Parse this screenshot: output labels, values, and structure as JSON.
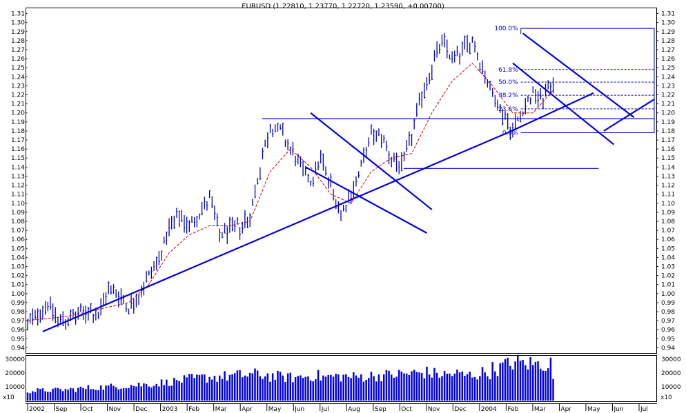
{
  "chart_data": {
    "type": "line",
    "title": "EURUSD (1.22810, 1.23770, 1.22720, 1.23590, +0.00700)",
    "price_axis": {
      "ylim": [
        0.935,
        1.315
      ],
      "ticks": [
        "0.94",
        "0.95",
        "0.96",
        "0.97",
        "0.98",
        "0.99",
        "1.00",
        "1.01",
        "1.02",
        "1.03",
        "1.04",
        "1.05",
        "1.06",
        "1.07",
        "1.08",
        "1.09",
        "1.10",
        "1.11",
        "1.12",
        "1.13",
        "1.14",
        "1.15",
        "1.16",
        "1.17",
        "1.18",
        "1.19",
        "1.20",
        "1.21",
        "1.22",
        "1.23",
        "1.24",
        "1.25",
        "1.26",
        "1.27",
        "1.28",
        "1.29",
        "1.30",
        "1.31"
      ]
    },
    "volume_axis": {
      "ylim": [
        0,
        32000
      ],
      "ticks": [
        "10000",
        "20000",
        "30000"
      ],
      "multiplier_label": "x10"
    },
    "x_axis": {
      "labels": [
        "2002",
        "Sep",
        "Oct",
        "Nov",
        "Dec",
        "2003",
        "Feb",
        "Mar",
        "Apr",
        "May",
        "Jun",
        "Jul",
        "Aug",
        "Sep",
        "Oct",
        "Nov",
        "Dec",
        "2004",
        "Feb",
        "Mar",
        "Apr",
        "May",
        "Jun",
        "Jul"
      ]
    },
    "series": [
      {
        "style": "price-bars",
        "color": "#0000b4",
        "points": [
          [
            0,
            0.965
          ],
          [
            1,
            0.978
          ],
          [
            2,
            0.99
          ],
          [
            3,
            0.97
          ],
          [
            4,
            0.972
          ],
          [
            5,
            0.975
          ],
          [
            6,
            0.982
          ],
          [
            7,
            0.975
          ],
          [
            8,
            1.005
          ],
          [
            9,
            1.0
          ],
          [
            10,
            0.985
          ],
          [
            11,
            0.998
          ],
          [
            12,
            1.02
          ],
          [
            13,
            1.04
          ],
          [
            14,
            1.07
          ],
          [
            15,
            1.085
          ],
          [
            16,
            1.075
          ],
          [
            17,
            1.09
          ],
          [
            18,
            1.105
          ],
          [
            19,
            1.065
          ],
          [
            20,
            1.07
          ],
          [
            21,
            1.075
          ],
          [
            22,
            1.085
          ],
          [
            23,
            1.14
          ],
          [
            24,
            1.185
          ],
          [
            25,
            1.18
          ],
          [
            26,
            1.16
          ],
          [
            27,
            1.14
          ],
          [
            28,
            1.125
          ],
          [
            29,
            1.15
          ],
          [
            30,
            1.12
          ],
          [
            31,
            1.09
          ],
          [
            32,
            1.11
          ],
          [
            33,
            1.14
          ],
          [
            34,
            1.175
          ],
          [
            35,
            1.175
          ],
          [
            36,
            1.15
          ],
          [
            37,
            1.14
          ],
          [
            38,
            1.175
          ],
          [
            39,
            1.22
          ],
          [
            40,
            1.25
          ],
          [
            41,
            1.28
          ],
          [
            42,
            1.26
          ],
          [
            43,
            1.27
          ],
          [
            44,
            1.28
          ],
          [
            45,
            1.25
          ],
          [
            46,
            1.22
          ],
          [
            47,
            1.2
          ],
          [
            48,
            1.18
          ],
          [
            49,
            1.205
          ],
          [
            50,
            1.22
          ],
          [
            51,
            1.215
          ],
          [
            52,
            1.235
          ]
        ]
      },
      {
        "style": "moving-average",
        "color": "#cc0000",
        "points": [
          [
            0,
            0.97
          ],
          [
            4,
            0.975
          ],
          [
            8,
            0.985
          ],
          [
            10,
            0.99
          ],
          [
            12,
            1.01
          ],
          [
            14,
            1.045
          ],
          [
            16,
            1.065
          ],
          [
            18,
            1.075
          ],
          [
            20,
            1.075
          ],
          [
            22,
            1.08
          ],
          [
            24,
            1.135
          ],
          [
            26,
            1.16
          ],
          [
            28,
            1.14
          ],
          [
            30,
            1.11
          ],
          [
            32,
            1.1
          ],
          [
            34,
            1.135
          ],
          [
            36,
            1.15
          ],
          [
            38,
            1.155
          ],
          [
            40,
            1.2
          ],
          [
            42,
            1.235
          ],
          [
            44,
            1.255
          ],
          [
            46,
            1.23
          ],
          [
            48,
            1.2
          ],
          [
            50,
            1.2
          ],
          [
            52,
            1.225
          ]
        ]
      },
      {
        "style": "volume-bars",
        "color": "#0000e0",
        "values": [
          7500,
          8000,
          8200,
          8500,
          8800,
          9500,
          10000,
          10500,
          11000,
          11500,
          12000,
          12500,
          13000,
          14000,
          15000,
          16000,
          17000,
          18000,
          18500,
          19000,
          19500,
          20000,
          20500,
          20000,
          19000,
          18500,
          18000,
          19000,
          19500,
          18500,
          19000,
          19000,
          18500,
          19000,
          19500,
          20000,
          20500,
          21000,
          21500,
          22000,
          21000,
          20500,
          21000,
          20000,
          20500,
          22000,
          25000,
          28000,
          30000,
          29000,
          28500,
          29000,
          18000
        ]
      }
    ],
    "fibonacci_levels": {
      "labels": [
        "100.0%",
        "61.8%",
        "50.0%",
        "38.2%",
        "23.6%",
        "0.0%"
      ],
      "prices": [
        1.2935,
        1.248,
        1.234,
        1.2195,
        1.2045,
        1.178
      ]
    },
    "horizontal_levels": [
      1.1935,
      1.1385
    ],
    "trendlines": [
      {
        "name": "main-uptrend",
        "from": [
          1.5,
          0.958
        ],
        "to": [
          47.5,
          1.178
        ]
      },
      {
        "name": "uptrend-extension",
        "from": [
          47.5,
          1.178
        ],
        "to": [
          56,
          1.222
        ]
      },
      {
        "name": "channel1-upper",
        "from": [
          28,
          1.2
        ],
        "to": [
          40,
          1.093
        ]
      },
      {
        "name": "channel1-lower",
        "from": [
          27.5,
          1.14
        ],
        "to": [
          39.5,
          1.067
        ]
      },
      {
        "name": "channel2-upper",
        "from": [
          49,
          1.288
        ],
        "to": [
          60,
          1.195
        ]
      },
      {
        "name": "channel2-lower",
        "from": [
          48,
          1.255
        ],
        "to": [
          58,
          1.165
        ]
      },
      {
        "name": "recent-uptrend",
        "from": [
          57,
          1.18
        ],
        "to": [
          62,
          1.215
        ]
      }
    ]
  }
}
